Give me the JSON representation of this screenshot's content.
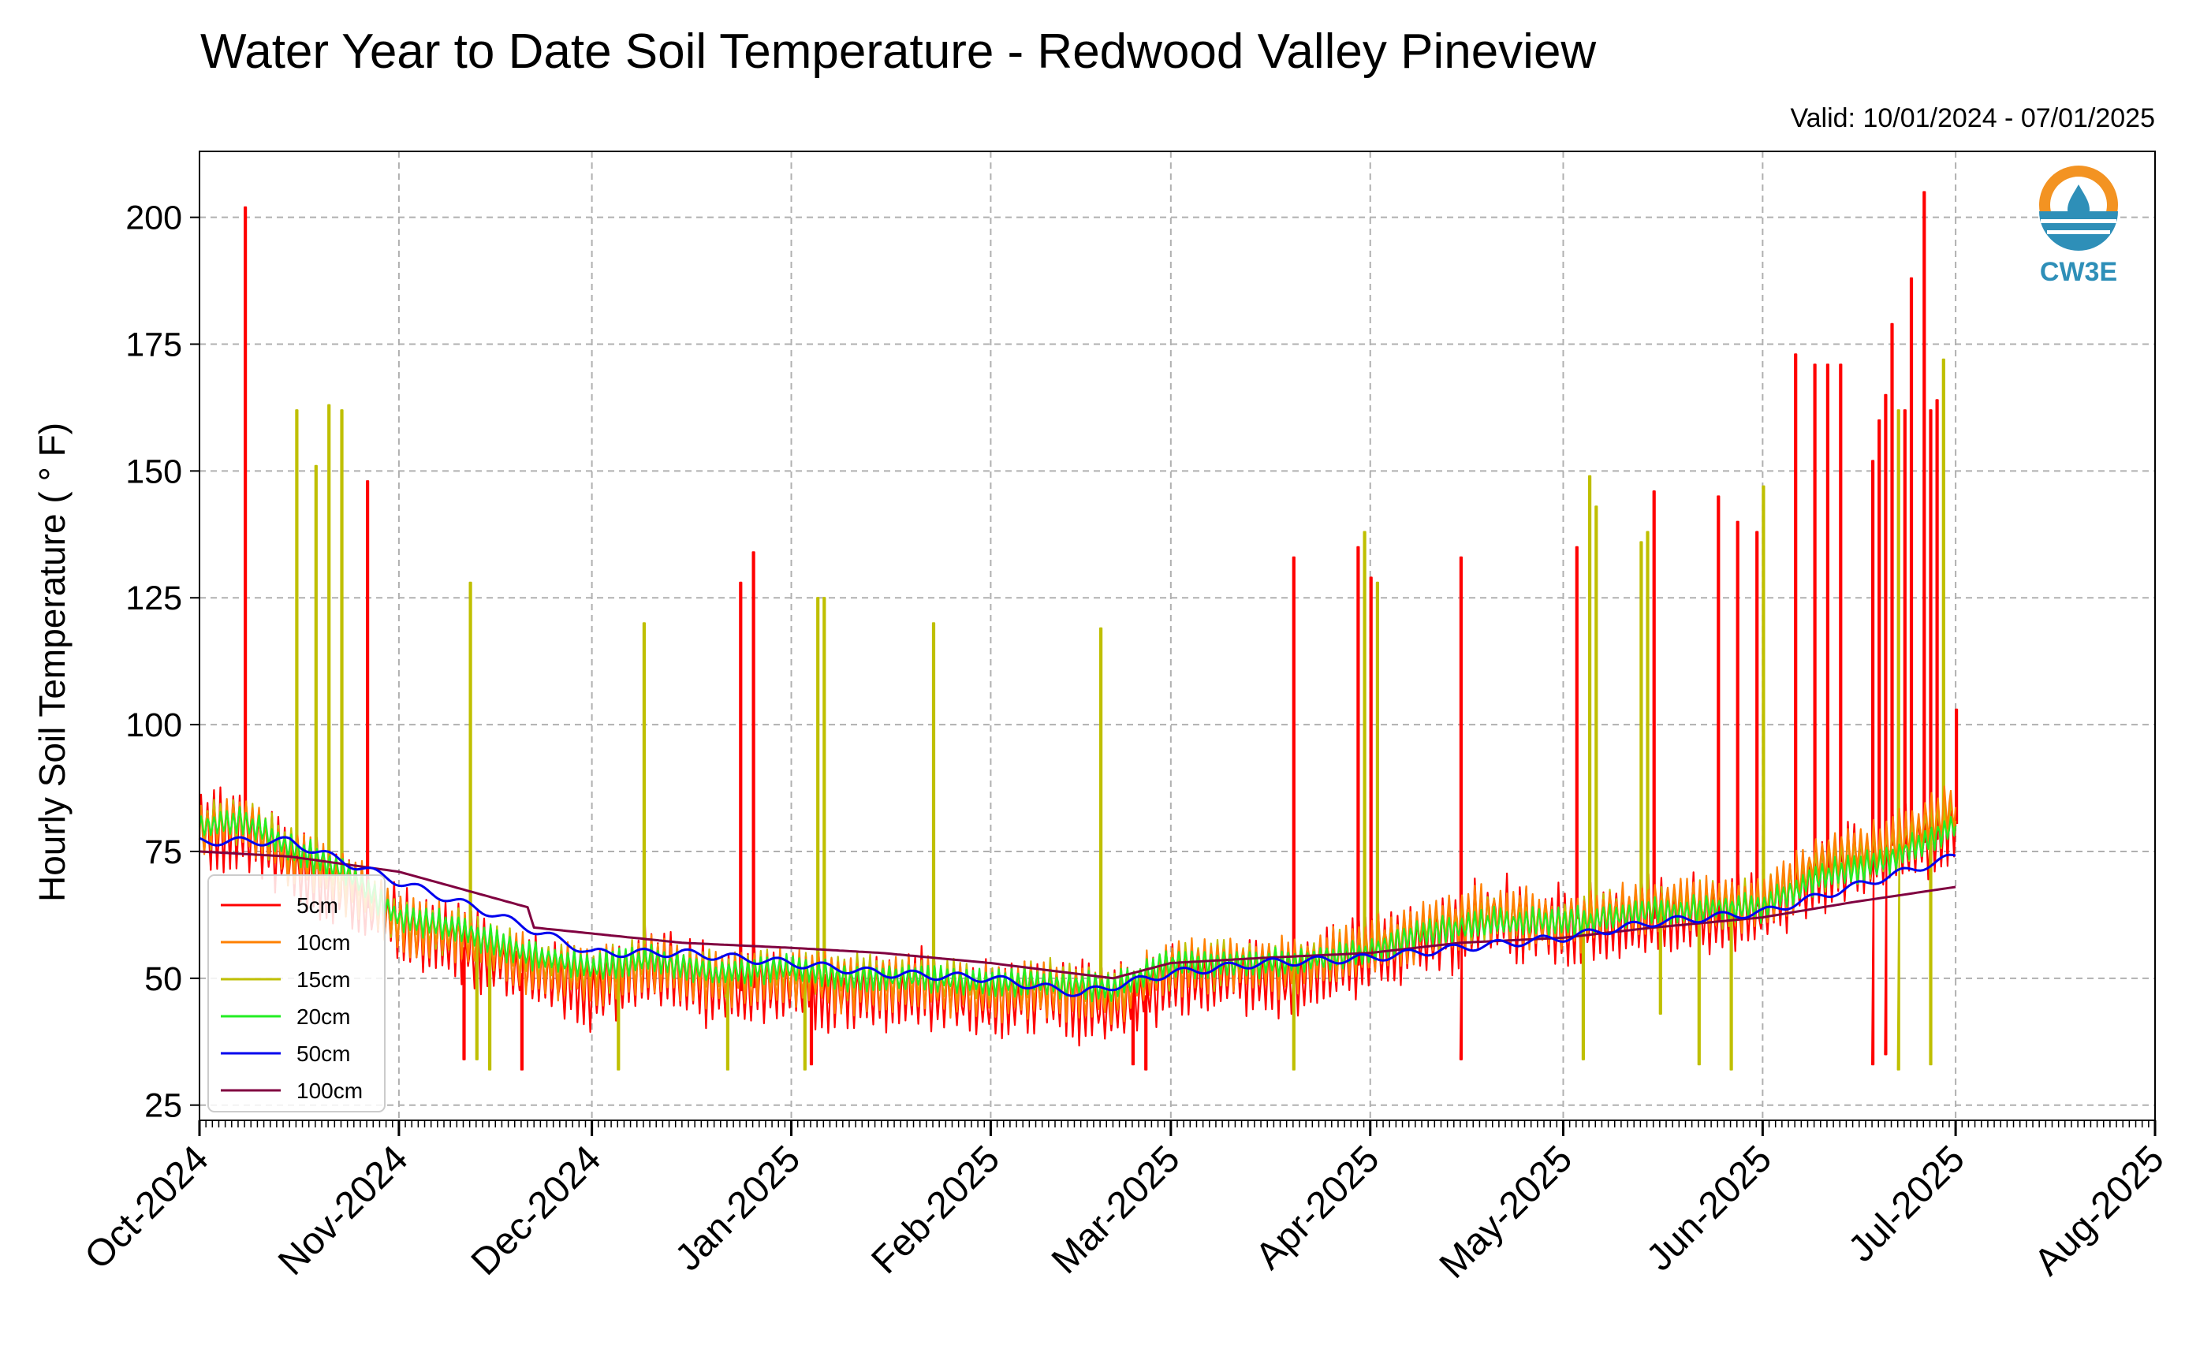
{
  "chart_data": {
    "type": "line",
    "title": "Water Year to Date Soil Temperature - Redwood Valley Pineview",
    "subtitle": "Valid: 10/01/2024 - 07/01/2025",
    "ylabel": "Hourly Soil Temperature ( ° F)",
    "xlabel": "",
    "ylim": [
      22,
      213
    ],
    "xlim": [
      "2024-10-01",
      "2025-08-01"
    ],
    "yticks": [
      25,
      50,
      75,
      100,
      125,
      150,
      175,
      200
    ],
    "xticks": [
      "Oct-2024",
      "Nov-2024",
      "Dec-2024",
      "Jan-2025",
      "Feb-2025",
      "Mar-2025",
      "Apr-2025",
      "May-2025",
      "Jun-2025",
      "Jul-2025",
      "Aug-2025"
    ],
    "grid": true,
    "legend_position": "lower-left",
    "series": [
      {
        "name": "5cm",
        "color": "#ff0000",
        "baseline": [
          [
            "2024-10-01",
            78
          ],
          [
            "2024-10-08",
            80
          ],
          [
            "2024-10-15",
            72
          ],
          [
            "2024-10-25",
            66
          ],
          [
            "2024-11-01",
            60
          ],
          [
            "2024-11-10",
            57
          ],
          [
            "2024-11-20",
            52
          ],
          [
            "2024-12-01",
            48
          ],
          [
            "2024-12-10",
            52
          ],
          [
            "2024-12-20",
            48
          ],
          [
            "2025-01-01",
            49
          ],
          [
            "2025-01-10",
            47
          ],
          [
            "2025-01-20",
            48
          ],
          [
            "2025-02-01",
            45
          ],
          [
            "2025-02-10",
            47
          ],
          [
            "2025-02-20",
            44
          ],
          [
            "2025-03-01",
            50
          ],
          [
            "2025-03-10",
            51
          ],
          [
            "2025-03-20",
            50
          ],
          [
            "2025-04-01",
            55
          ],
          [
            "2025-04-10",
            58
          ],
          [
            "2025-04-20",
            62
          ],
          [
            "2025-05-01",
            60
          ],
          [
            "2025-05-15",
            62
          ],
          [
            "2025-06-01",
            63
          ],
          [
            "2025-06-10",
            71
          ],
          [
            "2025-06-20",
            74
          ],
          [
            "2025-07-01",
            80
          ]
        ],
        "amplitude": 14,
        "spikes": [
          [
            "2024-10-08",
            202
          ],
          [
            "2024-10-27",
            148
          ],
          [
            "2024-12-24",
            128
          ],
          [
            "2024-12-26",
            134
          ],
          [
            "2025-03-20",
            133
          ],
          [
            "2025-03-30",
            135
          ],
          [
            "2025-04-01",
            129
          ],
          [
            "2025-04-15",
            133
          ],
          [
            "2025-05-03",
            135
          ],
          [
            "2025-05-15",
            146
          ],
          [
            "2025-05-25",
            145
          ],
          [
            "2025-05-28",
            140
          ],
          [
            "2025-05-31",
            138
          ],
          [
            "2025-06-06",
            173
          ],
          [
            "2025-06-09",
            171
          ],
          [
            "2025-06-11",
            171
          ],
          [
            "2025-06-13",
            171
          ],
          [
            "2025-06-18",
            152
          ],
          [
            "2025-06-19",
            160
          ],
          [
            "2025-06-20",
            165
          ],
          [
            "2025-06-21",
            179
          ],
          [
            "2025-06-23",
            162
          ],
          [
            "2025-06-24",
            188
          ],
          [
            "2025-06-26",
            205
          ],
          [
            "2025-06-27",
            162
          ],
          [
            "2025-06-28",
            164
          ],
          [
            "2025-07-01",
            103
          ]
        ],
        "drops": [
          [
            "2024-11-11",
            34
          ],
          [
            "2024-11-20",
            32
          ],
          [
            "2025-01-04",
            33
          ],
          [
            "2025-02-23",
            33
          ],
          [
            "2025-02-25",
            32
          ],
          [
            "2025-04-15",
            34
          ],
          [
            "2025-06-18",
            33
          ],
          [
            "2025-06-20",
            35
          ]
        ]
      },
      {
        "name": "10cm",
        "color": "#ff8000",
        "baseline": [
          [
            "2024-10-01",
            79
          ],
          [
            "2024-10-08",
            81
          ],
          [
            "2024-10-15",
            74
          ],
          [
            "2024-10-25",
            68
          ],
          [
            "2024-11-01",
            61
          ],
          [
            "2024-11-10",
            58
          ],
          [
            "2024-11-20",
            53
          ],
          [
            "2024-12-01",
            50
          ],
          [
            "2024-12-10",
            53
          ],
          [
            "2024-12-20",
            50
          ],
          [
            "2025-01-01",
            50
          ],
          [
            "2025-01-10",
            49
          ],
          [
            "2025-01-20",
            49
          ],
          [
            "2025-02-01",
            47
          ],
          [
            "2025-02-10",
            48
          ],
          [
            "2025-02-20",
            46
          ],
          [
            "2025-03-01",
            52
          ],
          [
            "2025-03-10",
            53
          ],
          [
            "2025-03-20",
            52
          ],
          [
            "2025-04-01",
            56
          ],
          [
            "2025-04-10",
            60
          ],
          [
            "2025-04-20",
            63
          ],
          [
            "2025-05-01",
            61
          ],
          [
            "2025-05-15",
            64
          ],
          [
            "2025-06-01",
            65
          ],
          [
            "2025-06-10",
            73
          ],
          [
            "2025-06-20",
            76
          ],
          [
            "2025-07-01",
            84
          ]
        ],
        "amplitude": 10,
        "spikes": [],
        "drops": []
      },
      {
        "name": "15cm",
        "color": "#bfbf00",
        "baseline": [
          [
            "2024-10-01",
            80
          ],
          [
            "2024-10-08",
            81
          ],
          [
            "2024-10-15",
            75
          ],
          [
            "2024-10-25",
            69
          ],
          [
            "2024-11-01",
            61
          ],
          [
            "2024-11-10",
            59
          ],
          [
            "2024-11-20",
            54
          ],
          [
            "2024-12-01",
            51
          ],
          [
            "2024-12-10",
            53
          ],
          [
            "2024-12-20",
            51
          ],
          [
            "2025-01-01",
            51
          ],
          [
            "2025-01-10",
            50
          ],
          [
            "2025-01-20",
            50
          ],
          [
            "2025-02-01",
            48
          ],
          [
            "2025-02-10",
            49
          ],
          [
            "2025-02-20",
            47
          ],
          [
            "2025-03-01",
            52
          ],
          [
            "2025-03-10",
            53
          ],
          [
            "2025-03-20",
            53
          ],
          [
            "2025-04-01",
            56
          ],
          [
            "2025-04-10",
            60
          ],
          [
            "2025-04-20",
            62
          ],
          [
            "2025-05-01",
            61
          ],
          [
            "2025-05-15",
            64
          ],
          [
            "2025-06-01",
            65
          ],
          [
            "2025-06-10",
            72
          ],
          [
            "2025-06-20",
            75
          ],
          [
            "2025-07-01",
            82
          ]
        ],
        "amplitude": 8,
        "spikes": [
          [
            "2024-10-16",
            162
          ],
          [
            "2024-10-19",
            151
          ],
          [
            "2024-10-21",
            163
          ],
          [
            "2024-10-23",
            162
          ],
          [
            "2024-11-12",
            128
          ],
          [
            "2024-12-09",
            120
          ],
          [
            "2025-01-05",
            125
          ],
          [
            "2025-01-06",
            125
          ],
          [
            "2025-01-23",
            120
          ],
          [
            "2025-02-18",
            119
          ],
          [
            "2025-03-31",
            138
          ],
          [
            "2025-04-02",
            128
          ],
          [
            "2025-05-05",
            149
          ],
          [
            "2025-05-06",
            143
          ],
          [
            "2025-05-13",
            136
          ],
          [
            "2025-05-14",
            138
          ],
          [
            "2025-06-01",
            147
          ],
          [
            "2025-06-22",
            162
          ],
          [
            "2025-06-29",
            172
          ]
        ],
        "drops": [
          [
            "2024-11-13",
            34
          ],
          [
            "2024-11-15",
            32
          ],
          [
            "2024-12-05",
            32
          ],
          [
            "2024-12-22",
            32
          ],
          [
            "2025-01-03",
            32
          ],
          [
            "2025-03-20",
            32
          ],
          [
            "2025-05-04",
            34
          ],
          [
            "2025-05-16",
            43
          ],
          [
            "2025-05-22",
            33
          ],
          [
            "2025-05-27",
            32
          ],
          [
            "2025-06-22",
            32
          ],
          [
            "2025-06-27",
            33
          ]
        ]
      },
      {
        "name": "20cm",
        "color": "#22ee22",
        "baseline": [
          [
            "2024-10-01",
            80
          ],
          [
            "2024-10-08",
            81
          ],
          [
            "2024-10-15",
            76
          ],
          [
            "2024-10-25",
            70
          ],
          [
            "2024-11-01",
            62
          ],
          [
            "2024-11-10",
            60
          ],
          [
            "2024-11-20",
            55
          ],
          [
            "2024-12-01",
            52
          ],
          [
            "2024-12-10",
            54
          ],
          [
            "2024-12-20",
            51
          ],
          [
            "2025-01-01",
            52
          ],
          [
            "2025-01-10",
            50
          ],
          [
            "2025-01-20",
            50
          ],
          [
            "2025-02-01",
            49
          ],
          [
            "2025-02-10",
            49
          ],
          [
            "2025-02-20",
            48
          ],
          [
            "2025-03-01",
            53
          ],
          [
            "2025-03-10",
            53
          ],
          [
            "2025-03-20",
            53
          ],
          [
            "2025-04-01",
            55
          ],
          [
            "2025-04-10",
            59
          ],
          [
            "2025-04-20",
            61
          ],
          [
            "2025-05-01",
            61
          ],
          [
            "2025-05-15",
            63
          ],
          [
            "2025-06-01",
            64
          ],
          [
            "2025-06-10",
            70
          ],
          [
            "2025-06-20",
            73
          ],
          [
            "2025-07-01",
            80
          ]
        ],
        "amplitude": 5,
        "spikes": [],
        "drops": []
      },
      {
        "name": "50cm",
        "color": "#0000ee",
        "points": [
          [
            "2024-10-01",
            77
          ],
          [
            "2024-10-15",
            77
          ],
          [
            "2024-11-01",
            69
          ],
          [
            "2024-11-15",
            63
          ],
          [
            "2024-12-01",
            55
          ],
          [
            "2024-12-15",
            55
          ],
          [
            "2025-01-01",
            53
          ],
          [
            "2025-01-15",
            51
          ],
          [
            "2025-02-01",
            50
          ],
          [
            "2025-02-15",
            47
          ],
          [
            "2025-03-01",
            51
          ],
          [
            "2025-03-15",
            53
          ],
          [
            "2025-04-01",
            54
          ],
          [
            "2025-04-15",
            56
          ],
          [
            "2025-05-01",
            58
          ],
          [
            "2025-05-15",
            61
          ],
          [
            "2025-06-01",
            63
          ],
          [
            "2025-06-15",
            68
          ],
          [
            "2025-07-01",
            74
          ]
        ]
      },
      {
        "name": "100cm",
        "color": "#800040",
        "points": [
          [
            "2024-10-01",
            75
          ],
          [
            "2024-10-15",
            74
          ],
          [
            "2024-11-01",
            71
          ],
          [
            "2024-11-21",
            64
          ],
          [
            "2024-11-22",
            60
          ],
          [
            "2024-12-15",
            57
          ],
          [
            "2025-01-01",
            56
          ],
          [
            "2025-01-15",
            55
          ],
          [
            "2025-02-01",
            53
          ],
          [
            "2025-02-20",
            50
          ],
          [
            "2025-03-01",
            53
          ],
          [
            "2025-03-15",
            54
          ],
          [
            "2025-04-01",
            55
          ],
          [
            "2025-04-15",
            57
          ],
          [
            "2025-05-01",
            58
          ],
          [
            "2025-05-15",
            60
          ],
          [
            "2025-06-01",
            62
          ],
          [
            "2025-06-15",
            65
          ],
          [
            "2025-07-01",
            68
          ]
        ]
      }
    ]
  },
  "logo": {
    "text": "CW3E",
    "icon": "water-drop-sun-icon",
    "colors": [
      "#f39322",
      "#2e8fb8"
    ]
  }
}
